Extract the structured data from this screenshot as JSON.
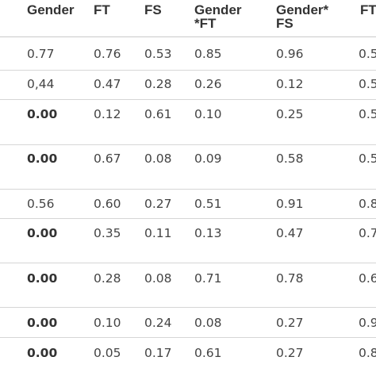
{
  "table": {
    "headers": [
      "Gender",
      "FT",
      "FS",
      "Gender\n*FT",
      "Gender*\nFS",
      "FT"
    ],
    "rows": [
      {
        "cells": [
          "0.77",
          "0.76",
          "0.53",
          "0.85",
          "0.96",
          "0.5"
        ],
        "first_bold": false
      },
      {
        "cells": [
          "0,44",
          "0.47",
          "0.28",
          "0.26",
          "0.12",
          "0.5"
        ],
        "first_bold": false
      },
      {
        "cells": [
          "0.00",
          "0.12",
          "0.61",
          "0.10",
          "0.25",
          "0.5"
        ],
        "first_bold": true
      },
      {
        "cells": [
          "0.00",
          "0.67",
          "0.08",
          "0.09",
          "0.58",
          "0.5"
        ],
        "first_bold": true
      },
      {
        "cells": [
          "0.56",
          "0.60",
          "0.27",
          "0.51",
          "0.91",
          "0.8"
        ],
        "first_bold": false
      },
      {
        "cells": [
          "0.00",
          "0.35",
          "0.11",
          "0.13",
          "0.47",
          "0.7"
        ],
        "first_bold": true
      },
      {
        "cells": [
          "0.00",
          "0.28",
          "0.08",
          "0.71",
          "0.78",
          "0.6"
        ],
        "first_bold": true
      },
      {
        "cells": [
          "0.00",
          "0.10",
          "0.24",
          "0.08",
          "0.27",
          "0.9"
        ],
        "first_bold": true
      },
      {
        "cells": [
          "0.00",
          "0.05",
          "0.17",
          "0.61",
          "0.27",
          "0.8"
        ],
        "first_bold": true
      }
    ]
  }
}
